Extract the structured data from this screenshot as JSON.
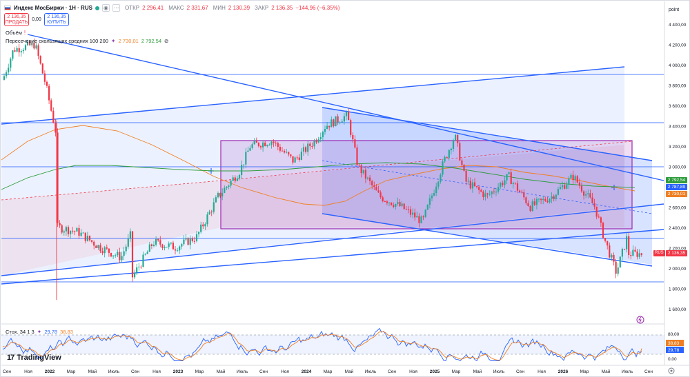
{
  "header": {
    "title": "Индекс МосБиржи · 1Н · RUS",
    "open_label": "ОТКР",
    "open_value": "2 296,41",
    "high_label": "МАКС",
    "high_value": "2 331,67",
    "low_label": "МИН",
    "low_value": "2 130,39",
    "close_label": "ЗАКР",
    "close_value": "2 136,35",
    "change_value": "−144,96 (−6,35%)"
  },
  "trade": {
    "sell_price": "2 136,35",
    "sell_label": "ПРОДАТЬ",
    "spread": "0,00",
    "buy_price": "2 136,35",
    "buy_label": "КУПИТЬ"
  },
  "indicators": {
    "volume_label": "Объём",
    "ma_cross_label": "Пересечение скользящих средних 100 200",
    "ma_fast_value": "2 730,01",
    "ma_slow_value": "2 792,54",
    "stoch_label": "Стох. 34 1 3",
    "stoch_k_value": "29,78",
    "stoch_d_value": "38,83"
  },
  "price_axis": {
    "unit": "point",
    "ticks": [
      "4 400,00",
      "4 200,00",
      "4 000,00",
      "3 800,00",
      "3 600,00",
      "3 400,00",
      "3 200,00",
      "3 000,00",
      "2 800,00",
      "2 600,00",
      "2 400,00",
      "2 200,00",
      "2 000,00",
      "1 800,00",
      "1 600,00"
    ],
    "tag_slow": "2 792,54",
    "tag_mid": "2 787,89",
    "tag_fast": "2 730,01",
    "tag_last": "2 136,35",
    "tag_last_symbol": "RUS"
  },
  "stoch_axis": {
    "ticks": [
      "80,00",
      "38,83",
      "29,78",
      "0,00"
    ]
  },
  "time_axis": {
    "labels": [
      "Сен",
      "Ноя",
      "2022",
      "Мар",
      "Май",
      "Июль",
      "Сен",
      "Ноя",
      "2023",
      "Мар",
      "Май",
      "Июль",
      "Сен",
      "Ноя",
      "2024",
      "Мар",
      "Май",
      "Июль",
      "Сен",
      "Ноя",
      "2025",
      "Мар",
      "Май",
      "Июль",
      "Сен",
      "Ноя",
      "2026",
      "Мар",
      "Май",
      "Июль",
      "Сен"
    ]
  },
  "brand": {
    "name": "TradingView",
    "mark": "17"
  },
  "colors": {
    "up": "#22ab94",
    "down": "#f23645",
    "line": "#2962ff",
    "ma_fast": "#ef7f22",
    "ma_slow": "#2e9c3c",
    "box": "#9c27b0"
  },
  "chart_data": {
    "type": "candlestick",
    "symbol": "Индекс МосБиржи",
    "timeframe": "1Н",
    "ylim": [
      1600,
      4450
    ],
    "x_start": "2021-09",
    "x_end": "2026-09",
    "key_levels": [
      3900,
      3420,
      2990,
      2280,
      1840
    ],
    "last_close": 2136.35,
    "path": [
      [
        "2021-09",
        3850
      ],
      [
        "2021-10",
        4150
      ],
      [
        "2021-12",
        4200
      ],
      [
        "2022-01",
        3800
      ],
      [
        "2022-02",
        3300
      ],
      [
        "2022-02",
        2400
      ],
      [
        "2022-04",
        2350
      ],
      [
        "2022-06",
        2200
      ],
      [
        "2022-08",
        2100
      ],
      [
        "2022-09",
        2350
      ],
      [
        "2022-09",
        1900
      ],
      [
        "2022-11",
        2250
      ],
      [
        "2023-01",
        2200
      ],
      [
        "2023-03",
        2300
      ],
      [
        "2023-05",
        2700
      ],
      [
        "2023-07",
        2950
      ],
      [
        "2023-08",
        3200
      ],
      [
        "2023-10",
        3250
      ],
      [
        "2023-12",
        3050
      ],
      [
        "2024-02",
        3250
      ],
      [
        "2024-03",
        3400
      ],
      [
        "2024-05",
        3500
      ],
      [
        "2024-06",
        3000
      ],
      [
        "2024-08",
        2700
      ],
      [
        "2024-10",
        2600
      ],
      [
        "2024-12",
        2450
      ],
      [
        "2025-02",
        3050
      ],
      [
        "2025-03",
        3300
      ],
      [
        "2025-04",
        2850
      ],
      [
        "2025-06",
        2700
      ],
      [
        "2025-08",
        2900
      ],
      [
        "2025-10",
        2600
      ],
      [
        "2025-12",
        2700
      ],
      [
        "2026-02",
        2900
      ],
      [
        "2026-04",
        2600
      ],
      [
        "2026-05",
        2250
      ],
      [
        "2026-06",
        1950
      ],
      [
        "2026-07",
        2300
      ],
      [
        "2026-07",
        2136.35
      ]
    ],
    "stochastic": {
      "k": 29.78,
      "d": 38.83,
      "ylim": [
        0,
        100
      ],
      "levels": [
        20,
        80
      ]
    }
  }
}
